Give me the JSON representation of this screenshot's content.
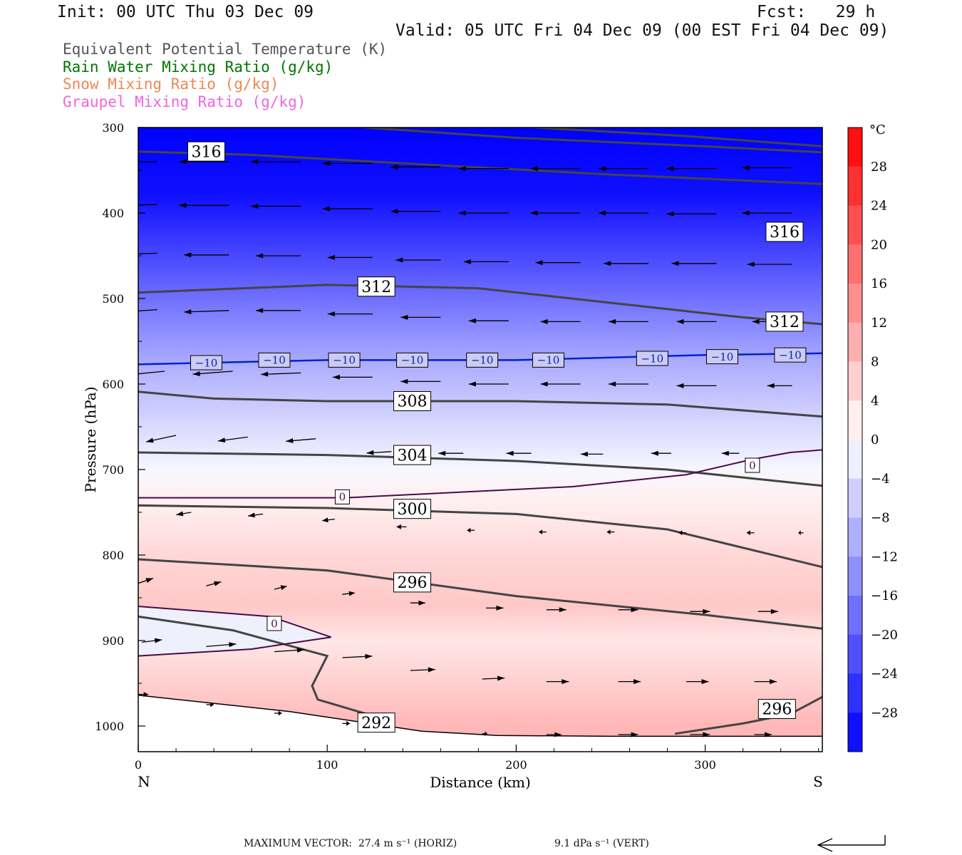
{
  "header": {
    "init": "Init: 00 UTC Thu 03 Dec 09",
    "fcst": "Fcst:   29 h",
    "valid": "Valid: 05 UTC Fri 04 Dec 09 (00 EST Fri 04 Dec 09)"
  },
  "legend": [
    {
      "text": "Equivalent Potential Temperature (K)",
      "color": "#555555"
    },
    {
      "text": "Rain Water Mixing Ratio (g/kg)",
      "color": "#007700"
    },
    {
      "text": "Snow Mixing Ratio (g/kg)",
      "color": "#ee8855"
    },
    {
      "text": "Graupel Mixing Ratio (g/kg)",
      "color": "#ee66dd"
    }
  ],
  "chart_data": {
    "type": "heatmap",
    "xlabel": "Distance (km)",
    "ylabel": "Pressure (hPa)",
    "x_ticks": [
      0,
      100,
      200,
      300
    ],
    "x_range": [
      0,
      362
    ],
    "y_ticks": [
      300,
      400,
      500,
      600,
      700,
      800,
      900,
      1000
    ],
    "y_range": [
      300,
      1030
    ],
    "endpoints": {
      "left": "N",
      "right": "S"
    },
    "colorbar": {
      "unit": "°C",
      "tick_values": [
        28,
        24,
        20,
        16,
        12,
        8,
        4,
        0,
        -4,
        -8,
        -12,
        -16,
        -20,
        -24,
        -28
      ],
      "tick_labels": [
        "28",
        "24",
        "20",
        "16",
        "12",
        "8",
        "4",
        "0",
        "−4",
        "−8",
        "−12",
        "−16",
        "−20",
        "−24",
        "−28"
      ]
    },
    "temperature_field": [
      {
        "p": 300,
        "t": -34
      },
      {
        "p": 380,
        "t": -30
      },
      {
        "p": 420,
        "t": -26
      },
      {
        "p": 460,
        "t": -22
      },
      {
        "p": 500,
        "t": -18
      },
      {
        "p": 540,
        "t": -14
      },
      {
        "p": 580,
        "t": -10
      },
      {
        "p": 620,
        "t": -7
      },
      {
        "p": 660,
        "t": -4
      },
      {
        "p": 700,
        "t": -1
      },
      {
        "p": 740,
        "t": 2
      },
      {
        "p": 800,
        "t": 5
      },
      {
        "p": 860,
        "t": 7
      },
      {
        "p": 900,
        "t": 3
      },
      {
        "p": 950,
        "t": 6
      },
      {
        "p": 1000,
        "t": 9
      }
    ],
    "theta_e_contours": [
      {
        "label": "316",
        "points": [
          [
            0,
            328
          ],
          [
            60,
            332
          ],
          [
            150,
            343
          ],
          [
            250,
            355
          ],
          [
            362,
            366
          ]
        ],
        "labels_at": [
          [
            36,
            328
          ],
          [
            342,
            422
          ]
        ]
      },
      {
        "label": "312",
        "points": [
          [
            0,
            493
          ],
          [
            100,
            484
          ],
          [
            180,
            488
          ],
          [
            250,
            505
          ],
          [
            320,
            522
          ],
          [
            362,
            530
          ]
        ],
        "labels_at": [
          [
            126,
            486
          ],
          [
            342,
            527
          ]
        ]
      },
      {
        "label": "308",
        "points": [
          [
            0,
            609
          ],
          [
            40,
            617
          ],
          [
            100,
            620
          ],
          [
            200,
            620
          ],
          [
            280,
            624
          ],
          [
            362,
            638
          ]
        ],
        "labels_at": [
          [
            145,
            620
          ]
        ]
      },
      {
        "label": "304",
        "points": [
          [
            0,
            680
          ],
          [
            100,
            683
          ],
          [
            200,
            690
          ],
          [
            280,
            700
          ],
          [
            362,
            719
          ]
        ],
        "labels_at": [
          [
            145,
            683
          ]
        ]
      },
      {
        "label": "300",
        "points": [
          [
            0,
            742
          ],
          [
            100,
            745
          ],
          [
            200,
            752
          ],
          [
            280,
            770
          ],
          [
            362,
            814
          ]
        ],
        "labels_at": [
          [
            145,
            746
          ]
        ]
      },
      {
        "label": "296",
        "points": [
          [
            0,
            805
          ],
          [
            100,
            818
          ],
          [
            200,
            848
          ],
          [
            300,
            870
          ],
          [
            362,
            886
          ]
        ],
        "labels_at": [
          [
            145,
            832
          ]
        ]
      },
      {
        "label": "292",
        "points": [
          [
            0,
            872
          ],
          [
            50,
            888
          ],
          [
            100,
            918
          ],
          [
            92,
            953
          ],
          [
            95,
            969
          ],
          [
            121,
            986
          ]
        ],
        "labels_at": [
          [
            126,
            996
          ]
        ]
      },
      {
        "label": "296",
        "points": [
          [
            284,
            1009
          ],
          [
            320,
            997
          ],
          [
            345,
            986
          ],
          [
            362,
            966
          ]
        ],
        "labels_at": [
          [
            338,
            980
          ]
        ]
      }
    ],
    "upper_arc_points": [
      [
        120,
        300
      ],
      [
        200,
        312
      ],
      [
        300,
        322
      ],
      [
        362,
        329
      ]
    ],
    "upper_arc2_points": [
      [
        210,
        300
      ],
      [
        290,
        310
      ],
      [
        362,
        322
      ]
    ],
    "isotherm_minus10": {
      "label": "−10",
      "points": [
        [
          0,
          577
        ],
        [
          100,
          572
        ],
        [
          200,
          572
        ],
        [
          300,
          566
        ],
        [
          362,
          564
        ]
      ],
      "labels_at": [
        [
          36,
          575
        ],
        [
          72,
          572
        ],
        [
          109,
          572
        ],
        [
          145,
          572
        ],
        [
          182,
          572
        ],
        [
          217,
          572
        ],
        [
          272,
          570
        ],
        [
          309,
          568
        ],
        [
          345,
          566
        ]
      ]
    },
    "freezing_level": {
      "label": "0",
      "points": [
        [
          0,
          733
        ],
        [
          110,
          733
        ],
        [
          230,
          720
        ],
        [
          290,
          706
        ],
        [
          325,
          688
        ],
        [
          345,
          680
        ],
        [
          362,
          677
        ]
      ],
      "labels_at": [
        [
          108,
          732
        ],
        [
          325,
          695
        ]
      ]
    },
    "freezing_lower": {
      "label": "0",
      "points": [
        [
          0,
          860
        ],
        [
          70,
          872
        ],
        [
          102,
          896
        ],
        [
          60,
          910
        ],
        [
          0,
          918
        ]
      ],
      "labels_at": [
        [
          72,
          880
        ]
      ]
    },
    "surface_points": [
      [
        0,
        964
      ],
      [
        80,
        983
      ],
      [
        150,
        1006
      ],
      [
        190,
        1011
      ],
      [
        250,
        1012
      ],
      [
        362,
        1012
      ]
    ],
    "vectors": [
      {
        "x": 10,
        "p": 340,
        "u": -1.0,
        "w": 0
      },
      {
        "x": 48,
        "p": 340,
        "u": -1.0,
        "w": 0
      },
      {
        "x": 86,
        "p": 340,
        "u": -1.0,
        "w": 0
      },
      {
        "x": 124,
        "p": 342,
        "u": -1.0,
        "w": 0
      },
      {
        "x": 160,
        "p": 346,
        "u": -1.0,
        "w": 0
      },
      {
        "x": 196,
        "p": 348,
        "u": -1.0,
        "w": 0
      },
      {
        "x": 234,
        "p": 348,
        "u": -1.0,
        "w": 0
      },
      {
        "x": 270,
        "p": 348,
        "u": -1.0,
        "w": 0
      },
      {
        "x": 306,
        "p": 348,
        "u": -1.0,
        "w": 0
      },
      {
        "x": 346,
        "p": 347,
        "u": -1.0,
        "w": 0
      },
      {
        "x": 10,
        "p": 390,
        "u": -1.0,
        "w": 0.03
      },
      {
        "x": 48,
        "p": 391,
        "u": -1.0,
        "w": 0
      },
      {
        "x": 86,
        "p": 392,
        "u": -1.0,
        "w": 0
      },
      {
        "x": 124,
        "p": 395,
        "u": -1.0,
        "w": 0
      },
      {
        "x": 160,
        "p": 398,
        "u": -1.0,
        "w": 0
      },
      {
        "x": 196,
        "p": 400,
        "u": -1.0,
        "w": 0
      },
      {
        "x": 234,
        "p": 400,
        "u": -1.0,
        "w": 0
      },
      {
        "x": 270,
        "p": 400,
        "u": -1.0,
        "w": 0
      },
      {
        "x": 306,
        "p": 401,
        "u": -1.0,
        "w": 0
      },
      {
        "x": 346,
        "p": 400,
        "u": -1.0,
        "w": 0
      },
      {
        "x": 10,
        "p": 447,
        "u": -0.9,
        "w": 0.03
      },
      {
        "x": 48,
        "p": 449,
        "u": -0.9,
        "w": 0
      },
      {
        "x": 86,
        "p": 450,
        "u": -0.9,
        "w": 0
      },
      {
        "x": 124,
        "p": 452,
        "u": -0.9,
        "w": 0
      },
      {
        "x": 160,
        "p": 455,
        "u": -0.9,
        "w": 0
      },
      {
        "x": 196,
        "p": 457,
        "u": -0.9,
        "w": 0
      },
      {
        "x": 234,
        "p": 458,
        "u": -0.9,
        "w": 0
      },
      {
        "x": 270,
        "p": 459,
        "u": -0.9,
        "w": 0
      },
      {
        "x": 306,
        "p": 459,
        "u": -0.9,
        "w": 0
      },
      {
        "x": 346,
        "p": 460,
        "u": -0.9,
        "w": 0
      },
      {
        "x": 10,
        "p": 513,
        "u": -0.9,
        "w": 0.06
      },
      {
        "x": 48,
        "p": 514,
        "u": -0.9,
        "w": 0.03
      },
      {
        "x": 86,
        "p": 514,
        "u": -0.9,
        "w": 0
      },
      {
        "x": 124,
        "p": 518,
        "u": -0.9,
        "w": 0
      },
      {
        "x": 160,
        "p": 522,
        "u": -0.8,
        "w": 0
      },
      {
        "x": 196,
        "p": 526,
        "u": -0.8,
        "w": 0
      },
      {
        "x": 234,
        "p": 527,
        "u": -0.8,
        "w": 0
      },
      {
        "x": 270,
        "p": 527,
        "u": -0.8,
        "w": 0
      },
      {
        "x": 306,
        "p": 527,
        "u": -0.8,
        "w": 0
      },
      {
        "x": 346,
        "p": 527,
        "u": -0.8,
        "w": 0
      },
      {
        "x": 14,
        "p": 585,
        "u": -0.8,
        "w": 0.08
      },
      {
        "x": 50,
        "p": 585,
        "u": -0.8,
        "w": 0.06
      },
      {
        "x": 86,
        "p": 587,
        "u": -0.8,
        "w": 0.03
      },
      {
        "x": 124,
        "p": 592,
        "u": -0.8,
        "w": 0
      },
      {
        "x": 160,
        "p": 597,
        "u": -0.8,
        "w": 0
      },
      {
        "x": 196,
        "p": 600,
        "u": -0.8,
        "w": 0
      },
      {
        "x": 234,
        "p": 600,
        "u": -0.8,
        "w": 0
      },
      {
        "x": 270,
        "p": 600,
        "u": -0.8,
        "w": 0
      },
      {
        "x": 306,
        "p": 602,
        "u": -0.8,
        "w": 0
      },
      {
        "x": 346,
        "p": 602,
        "u": -0.5,
        "w": 0
      },
      {
        "x": 20,
        "p": 660,
        "u": -0.6,
        "w": 0.13
      },
      {
        "x": 58,
        "p": 662,
        "u": -0.6,
        "w": 0.08
      },
      {
        "x": 94,
        "p": 664,
        "u": -0.6,
        "w": 0.05
      },
      {
        "x": 134,
        "p": 679,
        "u": -0.5,
        "w": 0.03
      },
      {
        "x": 172,
        "p": 681,
        "u": -0.5,
        "w": 0
      },
      {
        "x": 208,
        "p": 681,
        "u": -0.5,
        "w": 0
      },
      {
        "x": 246,
        "p": 682,
        "u": -0.45,
        "w": 0
      },
      {
        "x": 282,
        "p": 681,
        "u": -0.4,
        "w": 0
      },
      {
        "x": 318,
        "p": 681,
        "u": -0.35,
        "w": 0
      },
      {
        "x": 28,
        "p": 750,
        "u": -0.3,
        "w": 0.05
      },
      {
        "x": 66,
        "p": 752,
        "u": -0.3,
        "w": 0.04
      },
      {
        "x": 104,
        "p": 758,
        "u": -0.25,
        "w": 0.03
      },
      {
        "x": 142,
        "p": 767,
        "u": -0.2,
        "w": 0
      },
      {
        "x": 178,
        "p": 771,
        "u": -0.15,
        "w": 0
      },
      {
        "x": 216,
        "p": 773,
        "u": -0.15,
        "w": 0
      },
      {
        "x": 252,
        "p": 773,
        "u": -0.15,
        "w": 0
      },
      {
        "x": 290,
        "p": 774,
        "u": -0.15,
        "w": 0
      },
      {
        "x": 326,
        "p": 774,
        "u": -0.15,
        "w": 0
      },
      {
        "x": 352,
        "p": 774,
        "u": -0.1,
        "w": 0
      },
      {
        "x": 0,
        "p": 833,
        "u": 0.3,
        "w": -0.1
      },
      {
        "x": 36,
        "p": 836,
        "u": 0.3,
        "w": -0.08
      },
      {
        "x": 72,
        "p": 840,
        "u": 0.25,
        "w": -0.06
      },
      {
        "x": 108,
        "p": 846,
        "u": 0.25,
        "w": -0.03
      },
      {
        "x": 144,
        "p": 856,
        "u": 0.3,
        "w": 0
      },
      {
        "x": 184,
        "p": 862,
        "u": 0.35,
        "w": 0
      },
      {
        "x": 216,
        "p": 864,
        "u": 0.4,
        "w": 0
      },
      {
        "x": 254,
        "p": 864,
        "u": 0.4,
        "w": 0
      },
      {
        "x": 292,
        "p": 866,
        "u": 0.4,
        "w": 0
      },
      {
        "x": 328,
        "p": 866,
        "u": 0.4,
        "w": 0
      },
      {
        "x": 2,
        "p": 902,
        "u": 0.4,
        "w": -0.05
      },
      {
        "x": 36,
        "p": 907,
        "u": 0.6,
        "w": -0.05
      },
      {
        "x": 72,
        "p": 913,
        "u": 0.6,
        "w": -0.04
      },
      {
        "x": 108,
        "p": 920,
        "u": 0.6,
        "w": -0.03
      },
      {
        "x": 144,
        "p": 935,
        "u": 0.5,
        "w": -0.02
      },
      {
        "x": 182,
        "p": 945,
        "u": 0.45,
        "w": -0.02
      },
      {
        "x": 216,
        "p": 948,
        "u": 0.45,
        "w": 0
      },
      {
        "x": 254,
        "p": 948,
        "u": 0.45,
        "w": 0
      },
      {
        "x": 290,
        "p": 948,
        "u": 0.45,
        "w": 0
      },
      {
        "x": 326,
        "p": 948,
        "u": 0.45,
        "w": 0
      },
      {
        "x": 0,
        "p": 963,
        "u": 0.2,
        "w": 0
      },
      {
        "x": 36,
        "p": 975,
        "u": 0.15,
        "w": 0
      },
      {
        "x": 72,
        "p": 985,
        "u": 0.15,
        "w": 0
      },
      {
        "x": 108,
        "p": 997,
        "u": 0.15,
        "w": 0
      },
      {
        "x": 182,
        "p": 1009,
        "u": 0.1,
        "w": 0
      },
      {
        "x": 216,
        "p": 1010,
        "u": 0.3,
        "w": 0
      },
      {
        "x": 254,
        "p": 1010,
        "u": 0.4,
        "w": 0
      },
      {
        "x": 292,
        "p": 1010,
        "u": 0.4,
        "w": 0
      },
      {
        "x": 326,
        "p": 1010,
        "u": 0.35,
        "w": 0
      }
    ]
  },
  "footer": {
    "max_vector": "MAXIMUM VECTOR:  27.4 m s⁻¹ (HORIZ)",
    "vert": "9.1 dPa s⁻¹ (VERT)"
  }
}
